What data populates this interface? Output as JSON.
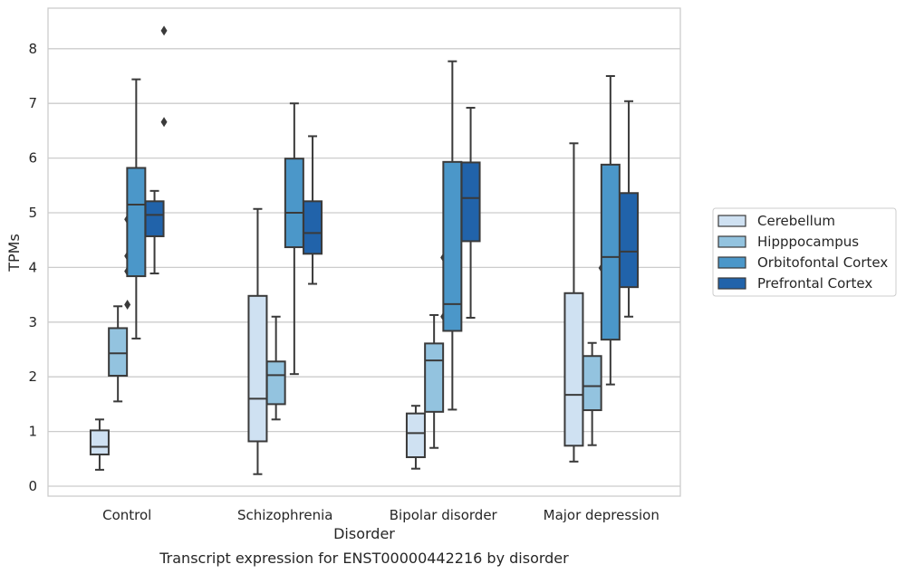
{
  "chart_data": {
    "type": "box",
    "xlabel": "Disorder",
    "ylabel": "TPMs",
    "caption": "Transcript expression for ENST00000442216 by disorder",
    "ylim": [
      -0.17,
      8.7
    ],
    "yticks": [
      0,
      1,
      2,
      3,
      4,
      5,
      6,
      7,
      8
    ],
    "grid": "horizontal",
    "legend_placement": "right",
    "categories": [
      "Control",
      "Schizophrenia",
      "Bipolar disorder",
      "Major depression"
    ],
    "series": [
      {
        "name": "Cerebellum",
        "color": "#cfe1f2",
        "boxes": [
          {
            "whisker_low": 0.3,
            "q1": 0.58,
            "median": 0.72,
            "q3": 1.02,
            "whisker_high": 1.22,
            "outliers": []
          },
          {
            "whisker_low": 0.22,
            "q1": 0.82,
            "median": 1.6,
            "q3": 3.48,
            "whisker_high": 5.07,
            "outliers": []
          },
          {
            "whisker_low": 0.32,
            "q1": 0.53,
            "median": 0.97,
            "q3": 1.33,
            "whisker_high": 1.47,
            "outliers": []
          },
          {
            "whisker_low": 0.45,
            "q1": 0.74,
            "median": 1.67,
            "q3": 3.53,
            "whisker_high": 6.27,
            "outliers": []
          }
        ]
      },
      {
        "name": "Hipppocampus",
        "color": "#93c3df",
        "boxes": [
          {
            "whisker_low": 1.55,
            "q1": 2.02,
            "median": 2.43,
            "q3": 2.89,
            "whisker_high": 3.29,
            "outliers": [
              3.93,
              4.88,
              3.32,
              4.21
            ]
          },
          {
            "whisker_low": 1.22,
            "q1": 1.5,
            "median": 2.03,
            "q3": 2.28,
            "whisker_high": 3.1,
            "outliers": []
          },
          {
            "whisker_low": 0.7,
            "q1": 1.36,
            "median": 2.3,
            "q3": 2.61,
            "whisker_high": 3.13,
            "outliers": [
              3.1,
              4.18
            ]
          },
          {
            "whisker_low": 0.75,
            "q1": 1.39,
            "median": 1.83,
            "q3": 2.38,
            "whisker_high": 2.62,
            "outliers": [
              3.99
            ]
          }
        ]
      },
      {
        "name": "Orbitofontal Cortex",
        "color": "#4b97c9",
        "boxes": [
          {
            "whisker_low": 2.7,
            "q1": 3.84,
            "median": 5.15,
            "q3": 5.82,
            "whisker_high": 7.44,
            "outliers": []
          },
          {
            "whisker_low": 2.05,
            "q1": 4.37,
            "median": 5.0,
            "q3": 5.99,
            "whisker_high": 7.0,
            "outliers": []
          },
          {
            "whisker_low": 1.4,
            "q1": 2.84,
            "median": 3.33,
            "q3": 5.93,
            "whisker_high": 7.77,
            "outliers": []
          },
          {
            "whisker_low": 1.86,
            "q1": 2.68,
            "median": 4.19,
            "q3": 5.88,
            "whisker_high": 7.5,
            "outliers": []
          }
        ]
      },
      {
        "name": "Prefrontal Cortex",
        "color": "#2163aa",
        "boxes": [
          {
            "whisker_low": 3.89,
            "q1": 4.57,
            "median": 4.96,
            "q3": 5.21,
            "whisker_high": 5.4,
            "outliers": [
              6.66,
              8.33
            ]
          },
          {
            "whisker_low": 3.7,
            "q1": 4.25,
            "median": 4.63,
            "q3": 5.21,
            "whisker_high": 6.4,
            "outliers": []
          },
          {
            "whisker_low": 3.08,
            "q1": 4.48,
            "median": 5.27,
            "q3": 5.92,
            "whisker_high": 6.92,
            "outliers": []
          },
          {
            "whisker_low": 3.1,
            "q1": 3.64,
            "median": 4.29,
            "q3": 5.36,
            "whisker_high": 7.04,
            "outliers": []
          }
        ]
      }
    ]
  }
}
